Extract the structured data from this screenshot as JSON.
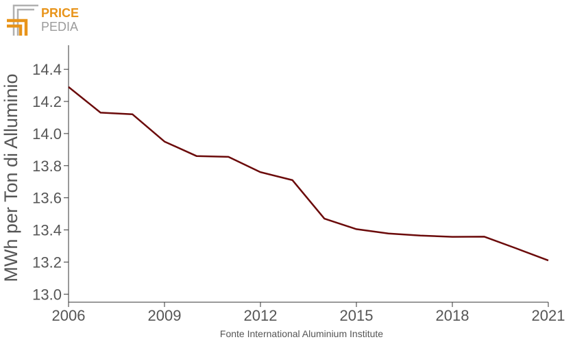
{
  "logo": {
    "word1": "PRICE",
    "word2": "PEDIA",
    "color_orange": "#E8941A",
    "color_gray": "#9b9b9b"
  },
  "source_note": "Fonte International Aluminium Institute",
  "chart_data": {
    "type": "line",
    "ylabel": "MWh per Ton di Alluminio",
    "xlim": [
      2006,
      2021
    ],
    "ylim": [
      12.95,
      14.55
    ],
    "xticks": [
      2006,
      2009,
      2012,
      2015,
      2018,
      2021
    ],
    "yticks": [
      13.0,
      13.2,
      13.4,
      13.6,
      13.8,
      14.0,
      14.2,
      14.4
    ],
    "ytick_labels": [
      "13.0",
      "13.2",
      "13.4",
      "13.6",
      "13.8",
      "14.0",
      "14.2",
      "14.4"
    ],
    "grid": false,
    "series": [
      {
        "color": "#6B0A0A",
        "x": [
          2006,
          2007,
          2008,
          2009,
          2010,
          2011,
          2012,
          2013,
          2014,
          2015,
          2016,
          2017,
          2018,
          2019,
          2020,
          2021
        ],
        "values": [
          14.29,
          14.13,
          14.12,
          13.95,
          13.86,
          13.855,
          13.76,
          13.71,
          13.47,
          13.405,
          13.378,
          13.365,
          13.357,
          13.358,
          13.285,
          13.21
        ]
      }
    ]
  }
}
